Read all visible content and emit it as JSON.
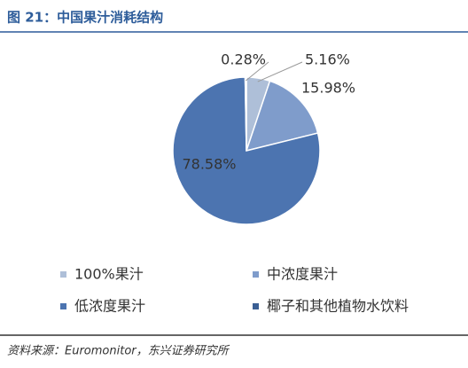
{
  "chart_data": {
    "type": "pie",
    "title": "图 21：中国果汁消耗结构",
    "categories": [
      "100%果汁",
      "中浓度果汁",
      "低浓度果汁",
      "椰子和其他植物水饮料"
    ],
    "values": [
      5.16,
      15.98,
      78.58,
      0.28
    ],
    "value_labels": [
      "5.16%",
      "15.98%",
      "78.58%",
      "0.28%"
    ],
    "colors": [
      "#aebfd8",
      "#7f9ccb",
      "#4c74b0",
      "#3b5f94"
    ]
  },
  "source": "资料来源：Euromonitor，东兴证券研究所"
}
